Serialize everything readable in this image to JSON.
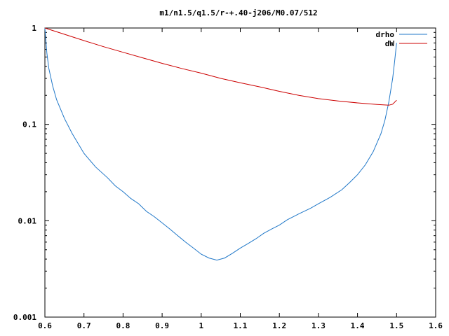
{
  "chart_data": {
    "type": "line",
    "title": "m1/n1.5/q1.5/r-+.40-j206/M0.07/512",
    "xlabel": "",
    "ylabel": "",
    "xlim": [
      0.6,
      1.6
    ],
    "ylim": [
      0.001,
      1
    ],
    "y_scale": "log",
    "grid": false,
    "legend_position": "top-right",
    "x_ticks": [
      0.6,
      0.7,
      0.8,
      0.9,
      1.0,
      1.1,
      1.2,
      1.3,
      1.4,
      1.5,
      1.6
    ],
    "x_tick_labels": [
      "0.6",
      "0.7",
      "0.8",
      "0.9",
      "1",
      "1.1",
      "1.2",
      "1.3",
      "1.4",
      "1.5",
      "1.6"
    ],
    "y_ticks": [
      0.001,
      0.01,
      0.1,
      1
    ],
    "y_tick_labels": [
      "0.001",
      "0.01",
      "0.1",
      "1"
    ],
    "series": [
      {
        "name": "drho",
        "color": "#1f77c8",
        "x": [
          0.6,
          0.605,
          0.61,
          0.62,
          0.63,
          0.65,
          0.67,
          0.7,
          0.73,
          0.76,
          0.78,
          0.8,
          0.82,
          0.84,
          0.86,
          0.88,
          0.9,
          0.92,
          0.94,
          0.96,
          0.98,
          1.0,
          1.02,
          1.04,
          1.06,
          1.08,
          1.1,
          1.12,
          1.14,
          1.16,
          1.18,
          1.2,
          1.22,
          1.25,
          1.28,
          1.3,
          1.33,
          1.36,
          1.38,
          1.4,
          1.42,
          1.44,
          1.46,
          1.47,
          1.48,
          1.49,
          1.495,
          1.5
        ],
        "y": [
          1.0,
          0.55,
          0.38,
          0.25,
          0.18,
          0.115,
          0.08,
          0.05,
          0.036,
          0.028,
          0.023,
          0.02,
          0.017,
          0.015,
          0.0125,
          0.011,
          0.0095,
          0.0082,
          0.007,
          0.006,
          0.0052,
          0.0045,
          0.0041,
          0.0039,
          0.0041,
          0.0046,
          0.0052,
          0.0058,
          0.0065,
          0.0074,
          0.0082,
          0.009,
          0.0102,
          0.0118,
          0.0135,
          0.015,
          0.0175,
          0.021,
          0.025,
          0.03,
          0.038,
          0.052,
          0.08,
          0.11,
          0.17,
          0.3,
          0.45,
          0.7
        ]
      },
      {
        "name": "dW",
        "color": "#cc0000",
        "x": [
          0.6,
          0.65,
          0.7,
          0.75,
          0.8,
          0.85,
          0.9,
          0.95,
          1.0,
          1.05,
          1.1,
          1.15,
          1.2,
          1.25,
          1.3,
          1.35,
          1.4,
          1.45,
          1.48,
          1.49,
          1.5
        ],
        "y": [
          1.0,
          0.86,
          0.74,
          0.64,
          0.56,
          0.49,
          0.43,
          0.38,
          0.34,
          0.3,
          0.27,
          0.245,
          0.22,
          0.2,
          0.185,
          0.175,
          0.167,
          0.161,
          0.158,
          0.162,
          0.178
        ]
      }
    ]
  }
}
